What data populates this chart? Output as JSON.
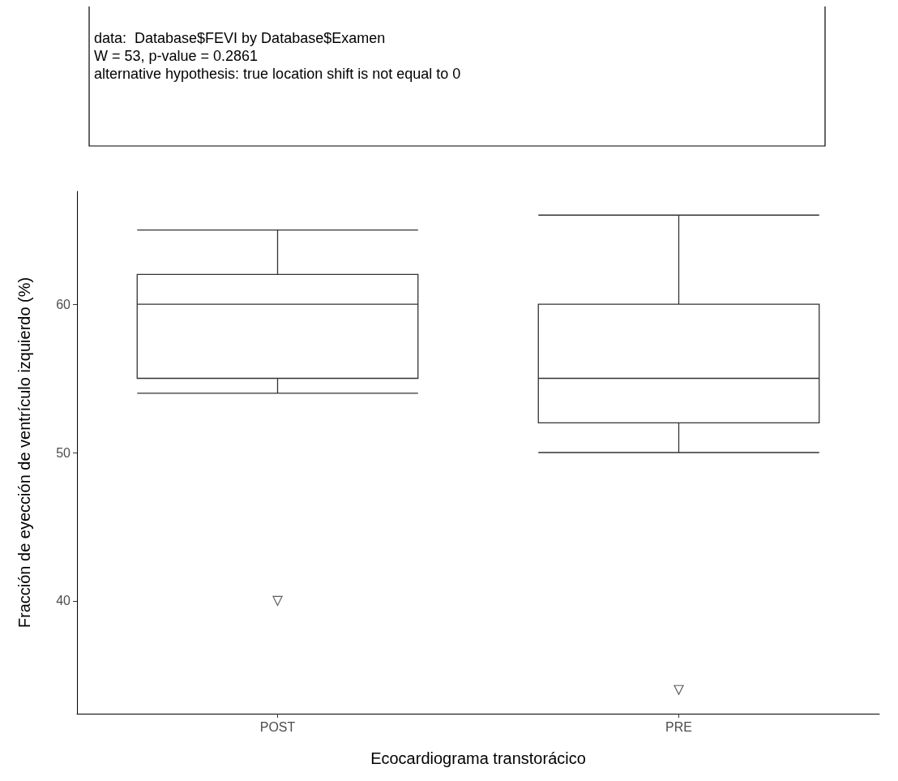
{
  "chart_data": {
    "type": "box",
    "xlabel": "Ecocardiograma transtorácico",
    "ylabel": "Fracción de eyección de ventrículo izquierdo (%)",
    "annotations": [
      "data:  Database$FEVI by Database$Examen",
      "W = 53, p-value = 0.2861",
      "alternative hypothesis: true location shift is not equal to 0"
    ],
    "categories": [
      "POST",
      "PRE"
    ],
    "boxes": [
      {
        "low": 54,
        "q1": 55,
        "median": 60,
        "q3": 62,
        "high": 65,
        "outliers": [
          40
        ]
      },
      {
        "low": 50,
        "q1": 52,
        "median": 55,
        "q3": 60,
        "high": 66,
        "outliers": [
          34
        ]
      }
    ],
    "color": "#333333",
    "marker": "triangle",
    "ylim": [
      32.4,
      67.6
    ],
    "yticks": [
      40,
      50,
      60
    ],
    "grid": false
  }
}
